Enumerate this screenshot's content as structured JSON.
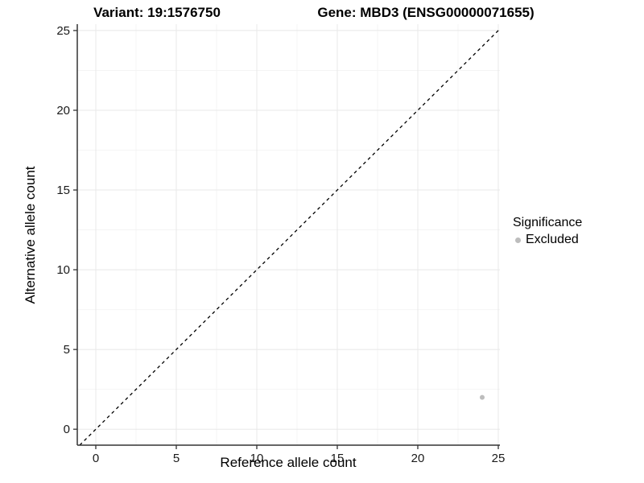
{
  "figure": {
    "title_left": "Variant: 19:1576750",
    "title_right": "Gene: MBD3 (ENSG00000071655)",
    "legend": {
      "title": "Significance",
      "items": [
        {
          "label": "Excluded",
          "color": "#bdbdbd"
        }
      ]
    }
  },
  "chart_data": {
    "type": "scatter",
    "title": "Variant: 19:1576750   Gene: MBD3 (ENSG00000071655)",
    "xlabel": "Reference allele count",
    "ylabel": "Alternative allele count",
    "xlim": [
      -1.15,
      25.1
    ],
    "ylim": [
      -1.0,
      25.4
    ],
    "x_ticks": [
      0,
      5,
      10,
      15,
      20,
      25
    ],
    "y_ticks": [
      0,
      5,
      10,
      15,
      20,
      25
    ],
    "x_minor_ticks": [
      2.5,
      7.5,
      12.5,
      17.5,
      22.5
    ],
    "y_minor_ticks": [
      2.5,
      7.5,
      12.5,
      17.5,
      22.5
    ],
    "grid": true,
    "legend_position": "right",
    "series": [
      {
        "name": "Excluded",
        "color": "#bdbdbd",
        "points": [
          [
            24,
            2
          ]
        ]
      }
    ],
    "reference_line": {
      "kind": "identity",
      "style": "dashed",
      "color": "#000000"
    },
    "colors": {
      "grid_major": "#e8e8e8",
      "grid_minor": "#f4f4f4",
      "axis_line": "#333333",
      "tick_mark": "#333333",
      "tick_label": "#1a1a1a",
      "panel_background": "#ffffff"
    }
  }
}
